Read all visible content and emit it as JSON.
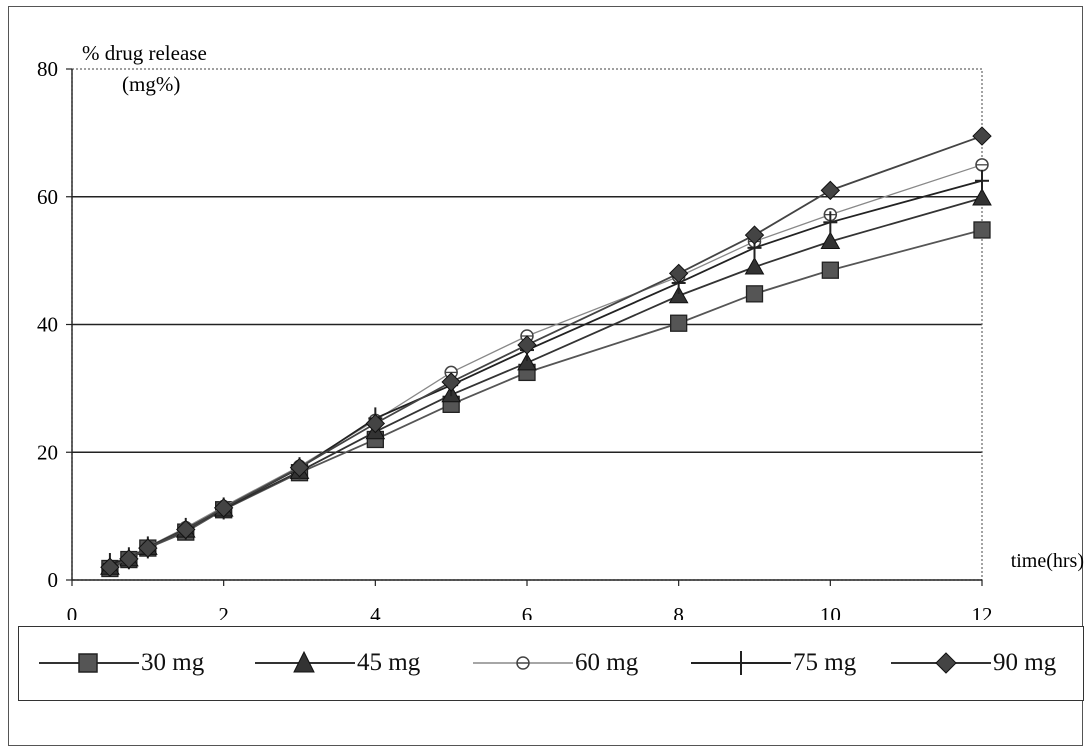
{
  "chart_data": {
    "type": "line",
    "title": "",
    "ylabel_line1": "% drug release",
    "ylabel_line2": "(mg%)",
    "xlabel": "time(hrs)",
    "xlim": [
      0,
      12
    ],
    "ylim": [
      0,
      80
    ],
    "x_ticks": [
      "0",
      "2",
      "4",
      "6",
      "8",
      "10",
      "12"
    ],
    "y_ticks": [
      "0",
      "20",
      "40",
      "60",
      "80"
    ],
    "grid": "horizontal",
    "legend_position": "bottom",
    "series": [
      {
        "name": "30 mg",
        "marker": "square",
        "color": "#555555",
        "points": [
          [
            0.5,
            1.8
          ],
          [
            0.75,
            3.2
          ],
          [
            1,
            5
          ],
          [
            1.5,
            7.5
          ],
          [
            2,
            11
          ],
          [
            3,
            16.8
          ],
          [
            4,
            22
          ],
          [
            5,
            27.5
          ],
          [
            6,
            32.5
          ],
          [
            8,
            40.2
          ],
          [
            9,
            44.8
          ],
          [
            10,
            48.5
          ],
          [
            12,
            54.8
          ]
        ]
      },
      {
        "name": "45 mg",
        "marker": "triangle",
        "color": "#333333",
        "points": [
          [
            0.5,
            2
          ],
          [
            0.75,
            3.3
          ],
          [
            1,
            5.1
          ],
          [
            1.5,
            7.8
          ],
          [
            2,
            11.1
          ],
          [
            3,
            17
          ],
          [
            4,
            23.2
          ],
          [
            5,
            29
          ],
          [
            6,
            34
          ],
          [
            8,
            44.5
          ],
          [
            9,
            49
          ],
          [
            10,
            53
          ],
          [
            12,
            59.8
          ]
        ]
      },
      {
        "name": "60 mg",
        "marker": "circle",
        "color": "#888888",
        "points": [
          [
            0.5,
            1.9
          ],
          [
            0.75,
            3.5
          ],
          [
            1,
            5.2
          ],
          [
            1.5,
            8.2
          ],
          [
            2,
            11.5
          ],
          [
            3,
            17.8
          ],
          [
            4,
            25
          ],
          [
            5,
            32.5
          ],
          [
            6,
            38.2
          ],
          [
            8,
            47.5
          ],
          [
            9,
            53
          ],
          [
            10,
            57.2
          ],
          [
            12,
            65
          ]
        ]
      },
      {
        "name": "75 mg",
        "marker": "plus",
        "color": "#222222",
        "points": [
          [
            0.5,
            2.5
          ],
          [
            0.75,
            3.4
          ],
          [
            1,
            5.1
          ],
          [
            1.5,
            8
          ],
          [
            2,
            11.2
          ],
          [
            3,
            17.5
          ],
          [
            4,
            25.3
          ],
          [
            5,
            30.5
          ],
          [
            6,
            36
          ],
          [
            8,
            46.5
          ],
          [
            9,
            52
          ],
          [
            10,
            56
          ],
          [
            12,
            62.5
          ]
        ]
      },
      {
        "name": "90 mg",
        "marker": "diamond",
        "color": "#444444",
        "points": [
          [
            0.5,
            2
          ],
          [
            0.75,
            3.3
          ],
          [
            1,
            5
          ],
          [
            1.5,
            7.9
          ],
          [
            2,
            11.3
          ],
          [
            3,
            17.6
          ],
          [
            4,
            24.5
          ],
          [
            5,
            31
          ],
          [
            6,
            36.8
          ],
          [
            8,
            48
          ],
          [
            9,
            54
          ],
          [
            10,
            61
          ],
          [
            12,
            69.5
          ]
        ]
      }
    ]
  }
}
